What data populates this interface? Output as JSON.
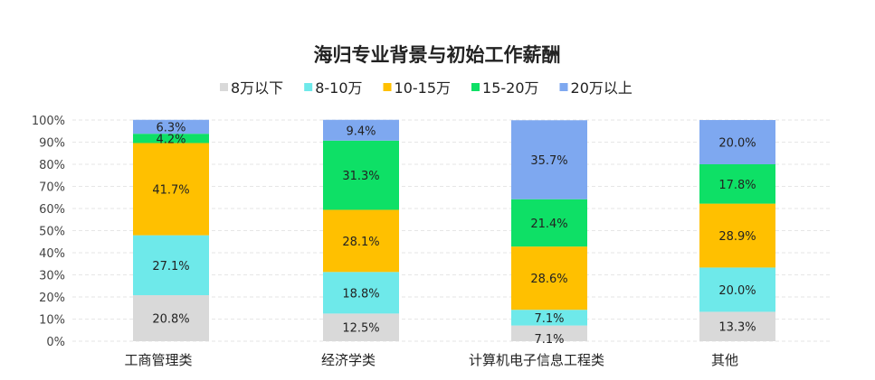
{
  "chart_data": {
    "type": "bar",
    "stacked": true,
    "title": "海归专业背景与初始工作薪酬",
    "categories": [
      "工商管理类",
      "经济学类",
      "计算机电子信息工程类",
      "其他"
    ],
    "series": [
      {
        "name": "8万以下",
        "color": "#d9d9d9",
        "values": [
          20.8,
          12.5,
          7.1,
          13.3
        ]
      },
      {
        "name": "8-10万",
        "color": "#6ee9ea",
        "values": [
          27.1,
          18.8,
          7.1,
          20.0
        ]
      },
      {
        "name": "10-15万",
        "color": "#ffc000",
        "values": [
          41.7,
          28.1,
          28.6,
          28.9
        ]
      },
      {
        "name": "15-20万",
        "color": "#0ee066",
        "values": [
          4.2,
          31.3,
          21.4,
          17.8
        ]
      },
      {
        "name": "20万以上",
        "color": "#7ea8f0",
        "values": [
          6.3,
          9.4,
          35.7,
          20.0
        ]
      }
    ],
    "ylim": [
      0,
      100
    ],
    "yticks": [
      "0%",
      "10%",
      "20%",
      "30%",
      "40%",
      "50%",
      "60%",
      "70%",
      "80%",
      "90%",
      "100%"
    ],
    "grid": true,
    "legend": "top"
  }
}
